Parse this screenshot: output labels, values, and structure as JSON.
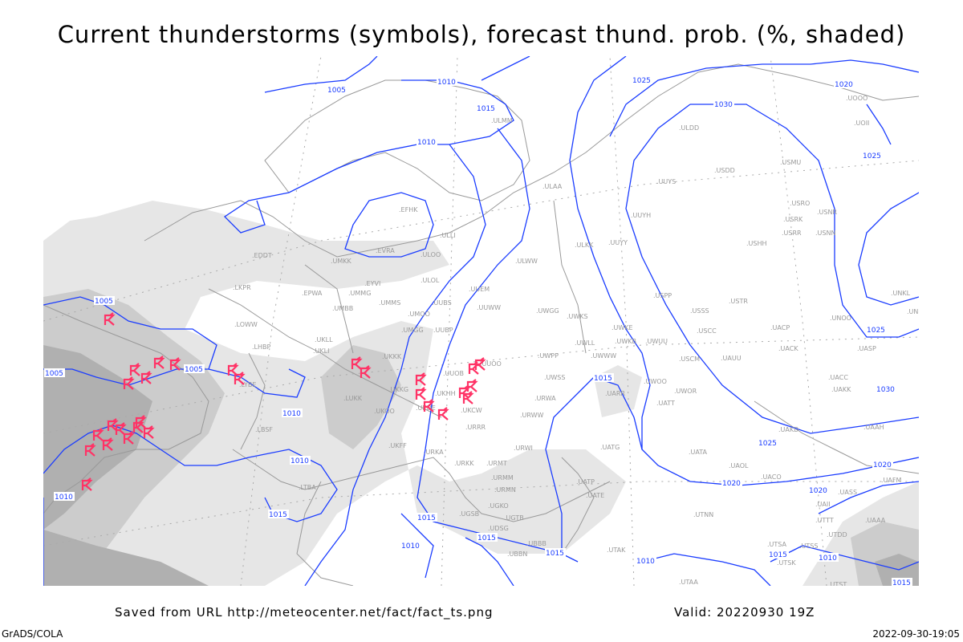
{
  "title": "Current thunderstorms (symbols), forecast thund. prob. (%, shaded)",
  "footer": {
    "source": "Saved from URL http://meteocenter.net/fact/fact_ts.png",
    "valid": "Valid: 20220930 19Z",
    "software": "GrADS/COLA",
    "timestamp": "2022-09-30-19:05"
  },
  "colors": {
    "isobar": "#1a3cff",
    "storm_symbol": "#ff3366",
    "station": "#999999",
    "coast": "#999999",
    "shade_light": "#e6e6e6",
    "shade_mid": "#cccccc",
    "shade_dark": "#b0b0b0"
  },
  "storm_symbol_icon": "thunderstorm-symbol",
  "isobar_labels": [
    "1005",
    "1010",
    "1015",
    "1010",
    "1005",
    "1005",
    "1005",
    "1010",
    "1010",
    "1010",
    "1015",
    "1015",
    "1015",
    "1010",
    "1015",
    "1015",
    "1020",
    "1025",
    "1020",
    "1030",
    "1025",
    "1025",
    "1030",
    "1025",
    "1020",
    "1020",
    "1010",
    "1015",
    "1010",
    "1015"
  ],
  "stations": [
    "ULMM",
    "ULAA",
    "ULLI",
    "EFHK",
    "EVRA",
    "ULOO",
    "EDDT",
    "UMKK",
    "LKPR",
    "EPWA",
    "EYVI",
    "UMMG",
    "ULOL",
    "UMBB",
    "UMMS",
    "UMOO",
    "UUBS",
    "UUEM",
    "UUWW",
    "UWGG",
    "UWKS",
    "UMGG",
    "UUBP",
    "UKLL",
    "UKLI",
    "LOWW",
    "LHBP",
    "UKKK",
    "UUOO",
    "UUOB",
    "UKKG",
    "UKHH",
    "UKOO",
    "LUKK",
    "UKDE",
    "UKCW",
    "UWPP",
    "UWSS",
    "URWA",
    "URWW",
    "UWWW",
    "UWLL",
    "UWKE",
    "UWKB",
    "UWUU",
    "UARR",
    "LYBE",
    "LBSF",
    "UKFF",
    "URKA",
    "URKK",
    "URRR",
    "URWI",
    "URMT",
    "URMM",
    "URMN",
    "UGSB",
    "UGKO",
    "UGTB",
    "UBBB",
    "UDSG",
    "UBBN",
    "LTBA",
    "UATG",
    "UATE",
    "UATP",
    "UTAK",
    "UWOO",
    "UWOR",
    "UATT",
    "USCM",
    "UAUU",
    "USCC",
    "USSS",
    "USTR",
    "UACP",
    "UACK",
    "UNOO",
    "UASP",
    "UACC",
    "UAKK",
    "UAAH",
    "UAKD",
    "UATA",
    "UAOL",
    "UACO",
    "UTNN",
    "UTAA",
    "UTSA",
    "UTSS",
    "UTSK",
    "UTST",
    "UTDD",
    "UTTT",
    "UAII",
    "UASS",
    "UAFM",
    "UAAA",
    "UNBB",
    "UNKL",
    "USHH",
    "USRR",
    "USNN",
    "USRK",
    "USRO",
    "USNR",
    "USMU",
    "USDD",
    "UUYS",
    "UUYH",
    "UUYY",
    "ULKK",
    "ULWW",
    "ULDD",
    "UOOO",
    "UOII",
    "USPP"
  ]
}
